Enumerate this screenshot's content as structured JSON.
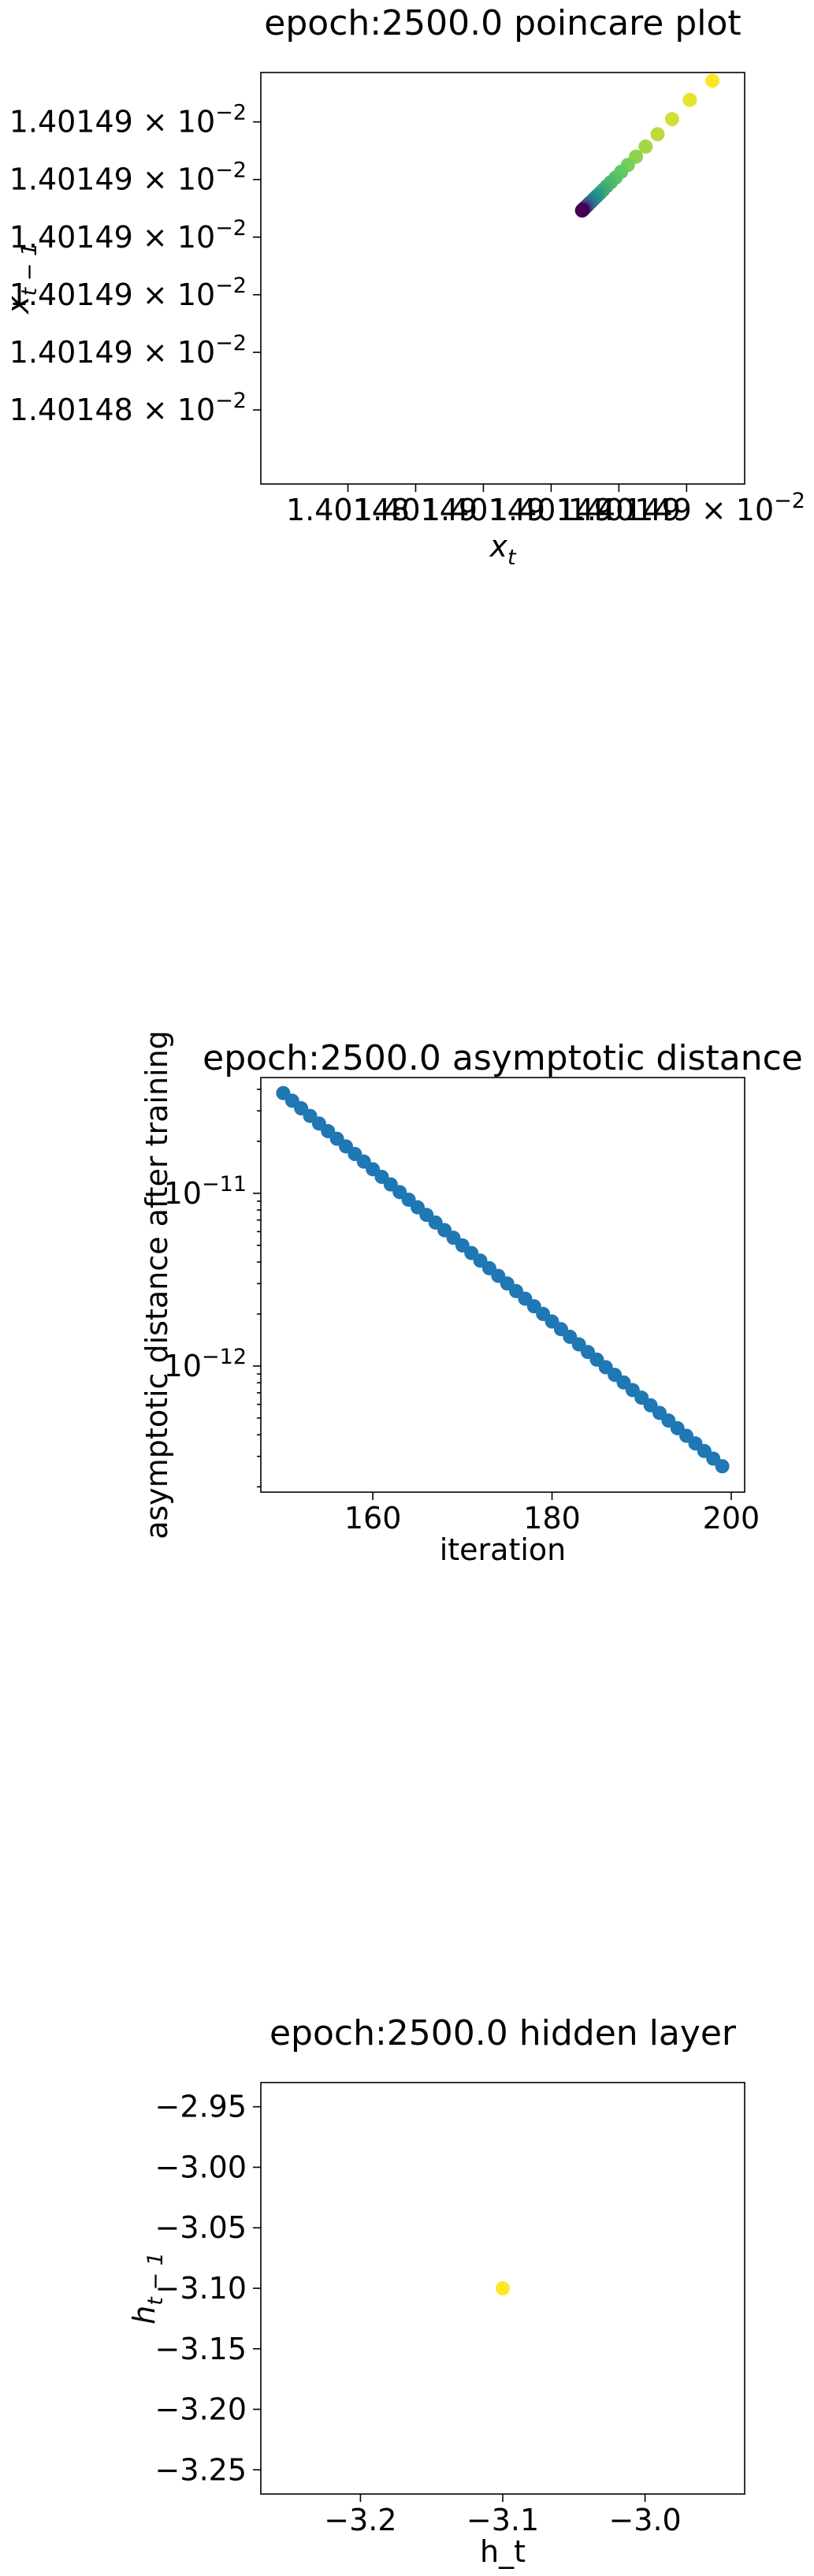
{
  "chart_data": [
    {
      "type": "scatter",
      "title": "epoch:2500.0 poincare plot",
      "xlabel": "x_t",
      "ylabel": "x_{t−1}",
      "colormap": "viridis",
      "color_by": "iteration index (first point yellow, last point purple)",
      "xlim": [
        0.01401475,
        0.0140149
      ],
      "ylim": [
        0.01401475,
        0.0140149
      ],
      "x_tick_labels": [
        "1.40148",
        "1.40149",
        "1.40149",
        "1.40149",
        "1.40149",
        "1.40149 × 10^−2"
      ],
      "y_tick_labels": [
        "1.40148 × 10^−2",
        "1.40149 × 10^−2",
        "1.40149 × 10^−2",
        "1.40149 × 10^−2",
        "1.40149 × 10^−2",
        "1.40149 × 10^−2"
      ],
      "x_tick_values": [
        0.014014777,
        0.014014798,
        0.014014819,
        0.01401484,
        0.014014861,
        0.014014882
      ],
      "y_tick_values": [
        0.014014777,
        0.014014798,
        0.014014819,
        0.01401484,
        0.014014861,
        0.014014882
      ],
      "x": [
        0.01401489,
        0.014014883,
        0.0140148775,
        0.014014873,
        0.0140148693,
        0.0140148663,
        0.0140148638,
        0.0140148617,
        0.01401486,
        0.0140148585,
        0.0140148572,
        0.0140148561,
        0.0140148552,
        0.0140148544,
        0.0140148537,
        0.0140148531,
        0.0140148526,
        0.0140148521,
        0.0140148517,
        0.0140148514,
        0.0140148511,
        0.0140148508,
        0.0140148506,
        0.0140148504,
        0.0140148502,
        0.01401485,
        0.0140148499,
        0.0140148498,
        0.0140148497,
        0.0140148496
      ],
      "y": [
        0.014014897,
        0.01401489,
        0.014014883,
        0.0140148775,
        0.014014873,
        0.0140148693,
        0.0140148663,
        0.0140148638,
        0.0140148617,
        0.01401486,
        0.0140148585,
        0.0140148572,
        0.0140148561,
        0.0140148552,
        0.0140148544,
        0.0140148537,
        0.0140148531,
        0.0140148526,
        0.0140148521,
        0.0140148517,
        0.0140148514,
        0.0140148511,
        0.0140148508,
        0.0140148506,
        0.0140148504,
        0.0140148502,
        0.01401485,
        0.0140148499,
        0.0140148498,
        0.0140148497
      ]
    },
    {
      "type": "scatter",
      "title": "epoch:2500.0 asymptotic distance",
      "xlabel": "iteration",
      "ylabel": "asymptotic distance after training",
      "color": "#1f77b4",
      "yscale": "log",
      "xlim": [
        147.5,
        201.5
      ],
      "ylim_log10": [
        -12.73,
        -10.33
      ],
      "x_ticks": [
        160,
        180,
        200
      ],
      "x_tick_labels": [
        "160",
        "180",
        "200"
      ],
      "y_ticks_log10": [
        -11,
        -12
      ],
      "y_tick_labels": [
        "10^−11",
        "10^−12"
      ],
      "x_start": 150,
      "x_end": 199,
      "log10_y_start": -10.42,
      "log10_y_end": -12.58
    },
    {
      "type": "scatter",
      "title": "epoch:2500.0 hidden layer",
      "xlabel": "h_t",
      "ylabel": "h_{t−1}",
      "color": "#fde725",
      "xlim": [
        -3.27,
        -2.93
      ],
      "ylim": [
        -3.27,
        -2.93
      ],
      "x_ticks": [
        -3.2,
        -3.1,
        -3.0
      ],
      "x_tick_labels": [
        "−3.2",
        "−3.1",
        "−3.0"
      ],
      "y_ticks": [
        -2.95,
        -3.0,
        -3.05,
        -3.1,
        -3.15,
        -3.2,
        -3.25
      ],
      "y_tick_labels": [
        "−2.95",
        "−3.00",
        "−3.05",
        "−3.10",
        "−3.15",
        "−3.20",
        "−3.25"
      ],
      "x": [
        -3.1
      ],
      "y": [
        -3.1
      ]
    }
  ]
}
